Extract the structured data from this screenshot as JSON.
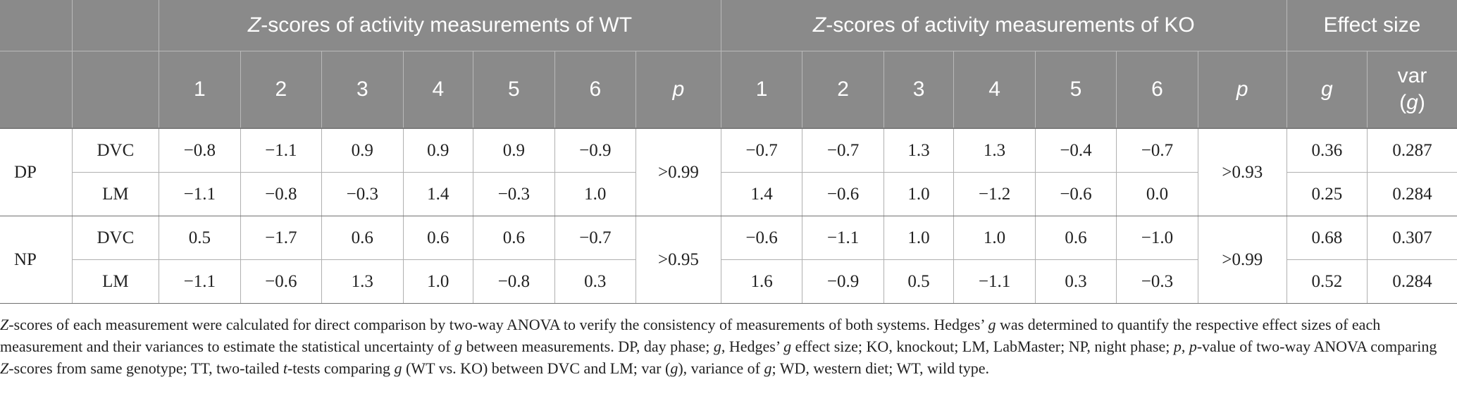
{
  "table": {
    "group_headers": {
      "wt": "-scores of activity measurements of WT",
      "ko": "-scores of activity measurements of KO",
      "z_prefix": "Z",
      "effect": "Effect size"
    },
    "sub_headers": {
      "wt_cols": [
        "1",
        "2",
        "3",
        "4",
        "5",
        "6"
      ],
      "ko_cols": [
        "1",
        "2",
        "3",
        "4",
        "5",
        "6"
      ],
      "p": "p",
      "g": "g",
      "var_prefix": "var",
      "var_open": "(",
      "var_g": "g",
      "var_close": ")"
    },
    "rows": [
      {
        "phase": "DP",
        "wt_p": ">0.99",
        "ko_p": ">0.93",
        "systems": [
          {
            "system": "DVC",
            "wt": [
              "−0.8",
              "−1.1",
              "0.9",
              "0.9",
              "0.9",
              "−0.9"
            ],
            "ko": [
              "−0.7",
              "−0.7",
              "1.3",
              "1.3",
              "−0.4",
              "−0.7"
            ],
            "g": "0.36",
            "var": "0.287"
          },
          {
            "system": "LM",
            "wt": [
              "−1.1",
              "−0.8",
              "−0.3",
              "1.4",
              "−0.3",
              "1.0"
            ],
            "ko": [
              "1.4",
              "−0.6",
              "1.0",
              "−1.2",
              "−0.6",
              "0.0"
            ],
            "g": "0.25",
            "var": "0.284"
          }
        ]
      },
      {
        "phase": "NP",
        "wt_p": ">0.95",
        "ko_p": ">0.99",
        "systems": [
          {
            "system": "DVC",
            "wt": [
              "0.5",
              "−1.7",
              "0.6",
              "0.6",
              "0.6",
              "−0.7"
            ],
            "ko": [
              "−0.6",
              "−1.1",
              "1.0",
              "1.0",
              "0.6",
              "−1.0"
            ],
            "g": "0.68",
            "var": "0.307"
          },
          {
            "system": "LM",
            "wt": [
              "−1.1",
              "−0.6",
              "1.3",
              "1.0",
              "−0.8",
              "0.3"
            ],
            "ko": [
              "1.6",
              "−0.9",
              "0.5",
              "−1.1",
              "0.3",
              "−0.3"
            ],
            "g": "0.52",
            "var": "0.284"
          }
        ]
      }
    ]
  },
  "footnote": {
    "s1": "Z",
    "s2": "-scores of each measurement were calculated for direct comparison by two-way ANOVA to verify the consistency of measurements of both systems. Hedges’ ",
    "s3": "g",
    "s4": " was determined to quantify the respective effect sizes of each measurement and their variances to estimate the statistical uncertainty of ",
    "s5": "g",
    "s6": " between measurements. DP, day phase; ",
    "s7": "g",
    "s8": ", Hedges’ ",
    "s9": "g",
    "s10": " effect size; KO, knockout; LM, LabMaster; NP, night phase; ",
    "s11": "p",
    "s12": ", ",
    "s13": "p",
    "s14": "-value of two-way ANOVA comparing ",
    "s15": "Z",
    "s16": "-scores from same genotype; TT, two-tailed ",
    "s17": "t",
    "s18": "-tests comparing ",
    "s19": "g",
    "s20": " (WT vs. KO) between DVC and LM; var (",
    "s21": "g",
    "s22": "), variance of ",
    "s23": "g",
    "s24": "; WD, western diet; WT, wild type."
  }
}
